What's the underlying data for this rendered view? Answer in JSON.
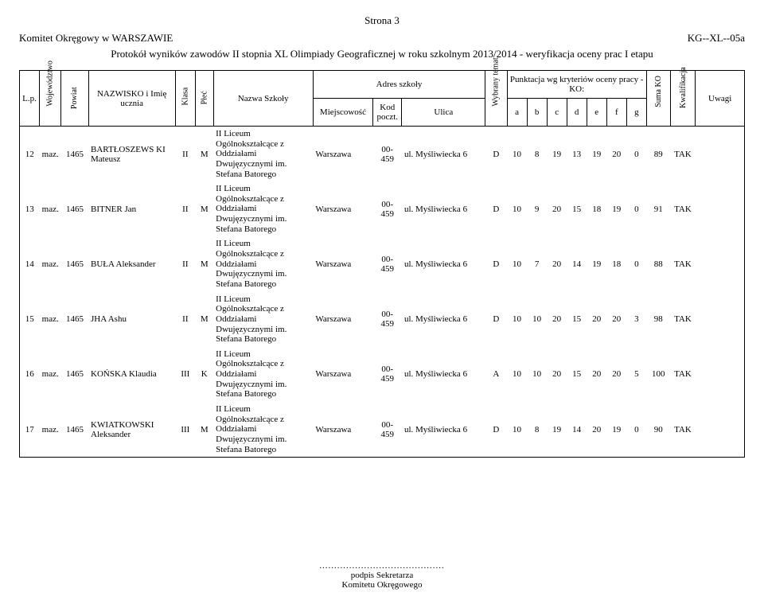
{
  "page_label": "Strona 3",
  "committee": "Komitet Okręgowy w WARSZAWIE",
  "form_code": "KG--XL--05a",
  "title": "Protokół wyników zawodów II stopnia XL Olimpiady Geograficznej w roku szkolnym 2013/2014 - weryfikacja oceny prac I etapu",
  "headers": {
    "lp": "L.p.",
    "woj": "Województwo",
    "powiat": "Powiat",
    "name": "NAZWISKO i Imię ucznia",
    "klasa": "Klasa",
    "plec": "Płeć",
    "school": "Nazwa Szkoły",
    "adres": "Adres szkoły",
    "miejscowosc": "Miejscowość",
    "kod": "Kod poczt.",
    "ulica": "Ulica",
    "temat": "Wybrany temat",
    "punktacja": "Punktacja wg kryteriów oceny pracy - KO:",
    "a": "a",
    "b": "b",
    "c": "c",
    "d": "d",
    "e": "e",
    "f": "f",
    "g": "g",
    "suma": "Suma KO",
    "kwal": "Kwalifikacja",
    "uwagi": "Uwagi"
  },
  "school_text": "II Liceum Ogólnokształcące z Oddziałami Dwujęzycznymi im. Stefana Batorego",
  "rows": [
    {
      "lp": "12",
      "woj": "maz.",
      "powiat": "1465",
      "name": "BARTŁOSZEWS KI Mateusz",
      "klasa": "II",
      "plec": "M",
      "city": "Warszawa",
      "kod": "00-459",
      "ulica": "ul. Myśliwiecka 6",
      "temat": "D",
      "a": "10",
      "b": "8",
      "c": "19",
      "d": "13",
      "e": "19",
      "f": "20",
      "g": "0",
      "suma": "89",
      "kwal": "TAK"
    },
    {
      "lp": "13",
      "woj": "maz.",
      "powiat": "1465",
      "name": "BITNER Jan",
      "klasa": "II",
      "plec": "M",
      "city": "Warszawa",
      "kod": "00-459",
      "ulica": "ul. Myśliwiecka 6",
      "temat": "D",
      "a": "10",
      "b": "9",
      "c": "20",
      "d": "15",
      "e": "18",
      "f": "19",
      "g": "0",
      "suma": "91",
      "kwal": "TAK"
    },
    {
      "lp": "14",
      "woj": "maz.",
      "powiat": "1465",
      "name": "BUŁA Aleksander",
      "klasa": "II",
      "plec": "M",
      "city": "Warszawa",
      "kod": "00-459",
      "ulica": "ul. Myśliwiecka 6",
      "temat": "D",
      "a": "10",
      "b": "7",
      "c": "20",
      "d": "14",
      "e": "19",
      "f": "18",
      "g": "0",
      "suma": "88",
      "kwal": "TAK"
    },
    {
      "lp": "15",
      "woj": "maz.",
      "powiat": "1465",
      "name": "JHA Ashu",
      "klasa": "II",
      "plec": "M",
      "city": "Warszawa",
      "kod": "00-459",
      "ulica": "ul. Myśliwiecka 6",
      "temat": "D",
      "a": "10",
      "b": "10",
      "c": "20",
      "d": "15",
      "e": "20",
      "f": "20",
      "g": "3",
      "suma": "98",
      "kwal": "TAK"
    },
    {
      "lp": "16",
      "woj": "maz.",
      "powiat": "1465",
      "name": "KOŃSKA Klaudia",
      "klasa": "III",
      "plec": "K",
      "city": "Warszawa",
      "kod": "00-459",
      "ulica": "ul. Myśliwiecka 6",
      "temat": "A",
      "a": "10",
      "b": "10",
      "c": "20",
      "d": "15",
      "e": "20",
      "f": "20",
      "g": "5",
      "suma": "100",
      "kwal": "TAK"
    },
    {
      "lp": "17",
      "woj": "maz.",
      "powiat": "1465",
      "name": "KWIATKOWSKI Aleksander",
      "klasa": "III",
      "plec": "M",
      "city": "Warszawa",
      "kod": "00-459",
      "ulica": "ul. Myśliwiecka 6",
      "temat": "D",
      "a": "10",
      "b": "8",
      "c": "19",
      "d": "14",
      "e": "20",
      "f": "19",
      "g": "0",
      "suma": "90",
      "kwal": "TAK"
    }
  ],
  "footer": {
    "dots": "..........................................",
    "line1": "podpis Sekretarza",
    "line2": "Komitetu Okręgowego"
  },
  "col_widths": {
    "lp": "22px",
    "woj": "24px",
    "powiat": "30px",
    "name": "96px",
    "klasa": "22px",
    "plec": "20px",
    "school": "110px",
    "city": "66px",
    "kod": "32px",
    "ulica": "92px",
    "temat": "24px",
    "score": "22px",
    "suma": "26px",
    "kwal": "28px",
    "uwagi": "54px"
  }
}
